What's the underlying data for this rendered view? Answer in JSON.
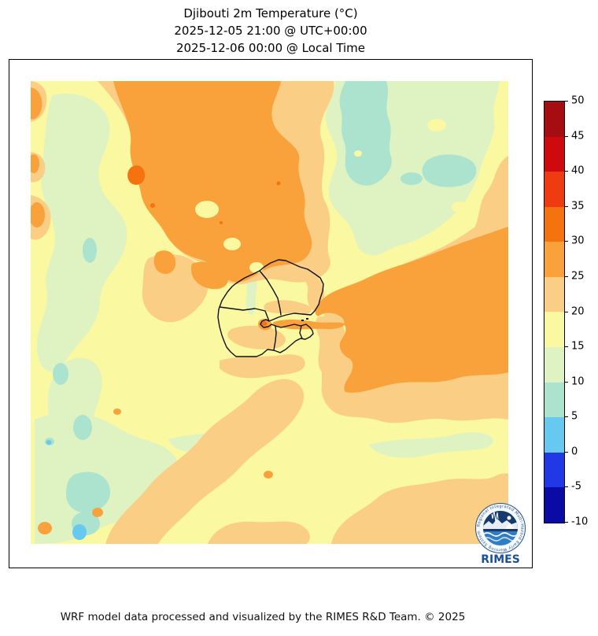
{
  "title": {
    "line1": "Djibouti 2m Temperature (°C)",
    "line2": "2025-12-05 21:00 @ UTC+00:00",
    "line3": "2025-12-06 00:00 @ Local Time"
  },
  "footer": {
    "credit": "WRF model data processed and visualized by the RIMES R&D Team. © 2025"
  },
  "colorbar": {
    "tick_labels": [
      "50",
      "45",
      "40",
      "35",
      "30",
      "25",
      "20",
      "15",
      "10",
      "5",
      "0",
      "-5",
      "-10"
    ],
    "segment_colors_top_to_bottom": [
      "#a50d10",
      "#cf0a0e",
      "#ee3b11",
      "#f4730f",
      "#f9a23c",
      "#fbce85",
      "#faf8a0",
      "#dff3c2",
      "#abe3ce",
      "#67c9f0",
      "#2038e5",
      "#0a0ba5"
    ]
  },
  "chart_data": {
    "type": "heatmap",
    "title": "Djibouti 2m Temperature (°C)",
    "legend_position": "right",
    "colorbar_levels_c": [
      -10,
      -5,
      0,
      5,
      10,
      15,
      20,
      25,
      30,
      35,
      40,
      45,
      50
    ],
    "colorbar_colors": [
      "#0a0ba5",
      "#2038e5",
      "#67c9f0",
      "#abe3ce",
      "#dff3c2",
      "#faf8a0",
      "#fbce85",
      "#f9a23c",
      "#f4730f",
      "#ee3b11",
      "#cf0a0e",
      "#a50d10"
    ],
    "depicted_value_range_c": [
      0,
      35
    ],
    "notes_visible": "Filled temperature contours over Djibouti region with country and admin outlines"
  },
  "map": {
    "palette": {
      "base": "#faf8a0",
      "green": "#dff3c2",
      "aqua": "#abe3ce",
      "light_blue": "#67c9f0",
      "peach": "#fbce85",
      "orange": "#f9a23c",
      "dark_orange": "#f4730f",
      "outline": "#111111"
    }
  },
  "logo": {
    "ring_text": "Regional Integrated Multi-Hazard Early Warning System",
    "wordmark": "RIMES",
    "colors": {
      "ring": "#24527f",
      "navy": "#143a6e",
      "mid_blue": "#2f7ec4",
      "text": "#1b4f9c"
    }
  }
}
